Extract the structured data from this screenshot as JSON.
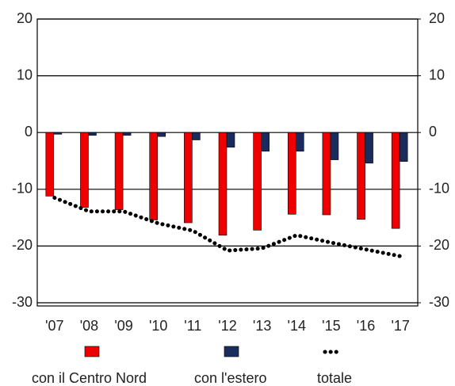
{
  "chart_data": {
    "type": "bar",
    "categories": [
      "'07",
      "'08",
      "'09",
      "'10",
      "'11",
      "'12",
      "'13",
      "'14",
      "'15",
      "'16",
      "'17"
    ],
    "series": [
      {
        "name": "con il Centro Nord",
        "color": "#ee0000",
        "values": [
          -11.2,
          -13.2,
          -13.6,
          -15.4,
          -15.9,
          -18.1,
          -17.2,
          -14.4,
          -14.5,
          -15.3,
          -16.9
        ]
      },
      {
        "name": "con l'estero",
        "color": "#1a2b5e",
        "values": [
          -0.3,
          -0.5,
          -0.5,
          -0.7,
          -1.3,
          -2.6,
          -3.3,
          -3.3,
          -4.8,
          -5.4,
          -5.1
        ]
      },
      {
        "name": "totale",
        "type": "line",
        "color": "#000000",
        "values": [
          -11.5,
          -13.9,
          -13.9,
          -16.0,
          -17.3,
          -20.8,
          -20.4,
          -18.1,
          -19.4,
          -20.6,
          -21.8
        ]
      }
    ],
    "ylim": [
      -30,
      20
    ],
    "yticks": [
      20,
      10,
      0,
      -10,
      -20,
      -30
    ],
    "y2lim": [
      -30,
      20
    ],
    "y2ticks": [
      20,
      10,
      0,
      -10,
      -20,
      -30
    ],
    "grid": true
  }
}
